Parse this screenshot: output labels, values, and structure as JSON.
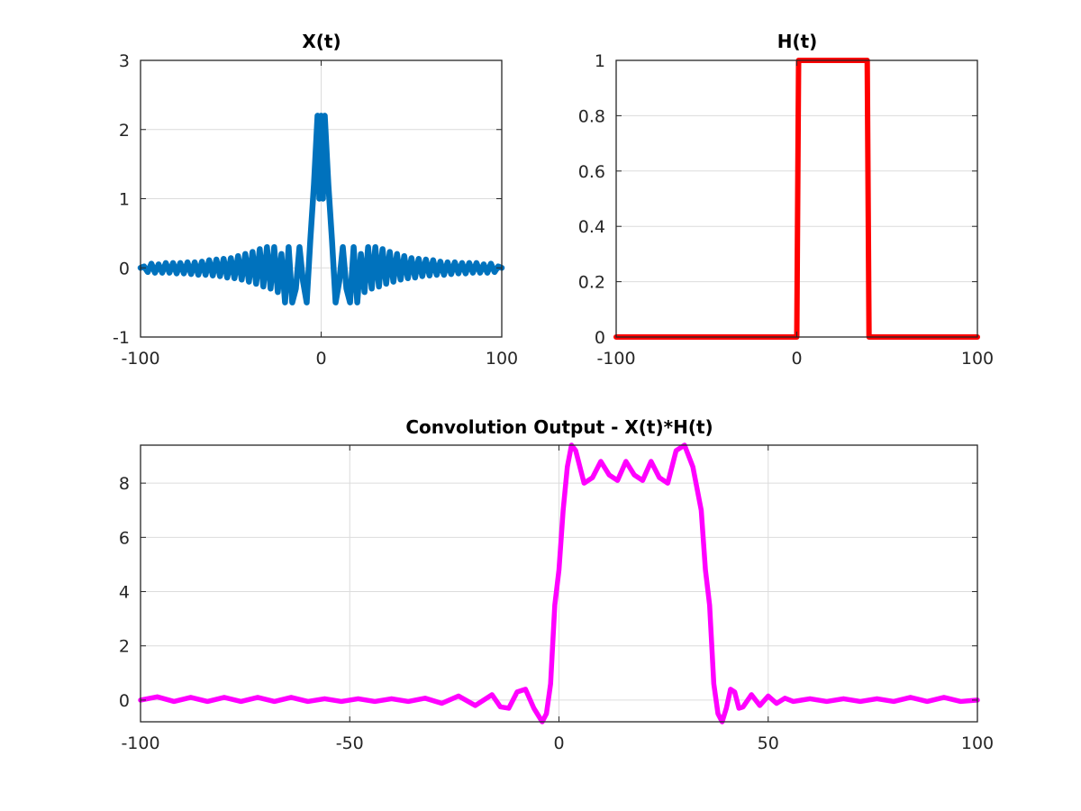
{
  "chart_data": [
    {
      "type": "line",
      "title": "X(t)",
      "xlabel": "",
      "ylabel": "",
      "xlim": [
        -100,
        100
      ],
      "ylim": [
        -1,
        3
      ],
      "xticks": [
        -100,
        0,
        100
      ],
      "yticks": [
        -1,
        0,
        1,
        2,
        3
      ],
      "xtick_labels": [
        "-100",
        "0",
        "100"
      ],
      "ytick_labels": [
        "-1",
        "0",
        "1",
        "2",
        "3"
      ],
      "grid": true,
      "color": "#0072BD",
      "series": [
        {
          "x": [
            -100,
            -98,
            -96,
            -94,
            -92,
            -90,
            -88,
            -86,
            -84,
            -82,
            -80,
            -78,
            -76,
            -74,
            -72,
            -70,
            -68,
            -66,
            -64,
            -62,
            -60,
            -58,
            -56,
            -54,
            -52,
            -50,
            -48,
            -46,
            -44,
            -42,
            -40,
            -38,
            -36,
            -34,
            -32,
            -30,
            -28,
            -26,
            -24,
            -22,
            -20,
            -18,
            -16,
            -14,
            -12,
            -10,
            -8,
            -6,
            -4,
            -2,
            -1,
            0,
            1,
            2,
            4,
            6,
            8,
            10,
            12,
            14,
            16,
            18,
            20,
            22,
            24,
            26,
            28,
            30,
            32,
            34,
            36,
            38,
            40,
            42,
            44,
            46,
            48,
            50,
            52,
            54,
            56,
            58,
            60,
            62,
            64,
            66,
            68,
            70,
            72,
            74,
            76,
            78,
            80,
            82,
            84,
            86,
            88,
            90,
            92,
            94,
            96,
            98,
            100
          ],
          "y": [
            0,
            0.02,
            -0.06,
            0.06,
            -0.07,
            0.05,
            -0.07,
            0.07,
            -0.07,
            0.07,
            -0.08,
            0.07,
            -0.08,
            0.08,
            -0.09,
            0.08,
            -0.1,
            0.09,
            -0.1,
            0.11,
            -0.11,
            0.12,
            -0.12,
            0.13,
            -0.14,
            0.14,
            -0.15,
            0.17,
            -0.17,
            0.2,
            -0.2,
            0.23,
            -0.23,
            0.27,
            -0.27,
            0.3,
            -0.3,
            0.3,
            -0.35,
            0.2,
            -0.5,
            0.3,
            -0.5,
            -0.3,
            0.3,
            -0.2,
            -0.5,
            0.4,
            1.2,
            2.2,
            1.0,
            2.2,
            1.0,
            2.2,
            1.2,
            0.4,
            -0.5,
            -0.2,
            0.3,
            -0.3,
            -0.5,
            0.3,
            -0.5,
            0.2,
            -0.35,
            0.3,
            -0.3,
            0.3,
            -0.27,
            0.27,
            -0.23,
            0.23,
            -0.2,
            0.2,
            -0.17,
            0.17,
            -0.15,
            0.14,
            -0.14,
            0.13,
            -0.12,
            0.12,
            -0.11,
            0.11,
            -0.1,
            0.09,
            -0.1,
            0.08,
            -0.09,
            0.08,
            -0.08,
            0.07,
            -0.08,
            0.07,
            -0.07,
            0.07,
            -0.07,
            0.05,
            -0.07,
            0.06,
            -0.06,
            0.02,
            0
          ]
        }
      ]
    },
    {
      "type": "line",
      "title": "H(t)",
      "xlabel": "",
      "ylabel": "",
      "xlim": [
        -100,
        100
      ],
      "ylim": [
        0,
        1
      ],
      "xticks": [
        -100,
        0,
        100
      ],
      "yticks": [
        0,
        0.2,
        0.4,
        0.6,
        0.8,
        1
      ],
      "xtick_labels": [
        "-100",
        "0",
        "100"
      ],
      "ytick_labels": [
        "0",
        "0.2",
        "0.4",
        "0.6",
        "0.8",
        "1"
      ],
      "grid": true,
      "color": "#FF0000",
      "series": [
        {
          "x": [
            -100,
            0,
            1,
            39,
            40,
            100
          ],
          "y": [
            0,
            0,
            1,
            1,
            0,
            0
          ]
        }
      ]
    },
    {
      "type": "line",
      "title": "Convolution Output -  X(t)*H(t)",
      "xlabel": "",
      "ylabel": "",
      "xlim": [
        -100,
        100
      ],
      "ylim": [
        -0.8,
        9.4
      ],
      "xticks": [
        -100,
        -50,
        0,
        50,
        100
      ],
      "yticks": [
        0,
        2,
        4,
        6,
        8
      ],
      "xtick_labels": [
        "-100",
        "-50",
        "0",
        "50",
        "100"
      ],
      "ytick_labels": [
        "0",
        "2",
        "4",
        "6",
        "8"
      ],
      "grid": true,
      "color": "#FF00FF",
      "series": [
        {
          "x": [
            -100,
            -96,
            -92,
            -88,
            -84,
            -80,
            -76,
            -72,
            -68,
            -64,
            -60,
            -56,
            -52,
            -48,
            -44,
            -40,
            -36,
            -32,
            -28,
            -24,
            -20,
            -16,
            -14,
            -12,
            -10,
            -8,
            -6,
            -4,
            -3,
            -2,
            -1,
            0,
            1,
            2,
            3,
            4,
            6,
            8,
            10,
            12,
            14,
            16,
            18,
            20,
            22,
            24,
            26,
            28,
            30,
            32,
            34,
            35,
            36,
            37,
            38,
            39,
            40,
            41,
            42,
            43,
            44,
            46,
            48,
            50,
            52,
            54,
            56,
            60,
            64,
            68,
            72,
            76,
            80,
            84,
            88,
            92,
            96,
            100
          ],
          "y": [
            0,
            0.12,
            -0.05,
            0.1,
            -0.05,
            0.1,
            -0.05,
            0.1,
            -0.05,
            0.1,
            -0.05,
            0.05,
            -0.05,
            0.05,
            -0.05,
            0.05,
            -0.05,
            0.07,
            -0.12,
            0.15,
            -0.2,
            0.2,
            -0.25,
            -0.3,
            0.3,
            0.4,
            -0.3,
            -0.8,
            -0.5,
            0.6,
            3.5,
            4.8,
            7.0,
            8.6,
            9.4,
            9.2,
            8.0,
            8.2,
            8.8,
            8.3,
            8.1,
            8.8,
            8.3,
            8.1,
            8.8,
            8.2,
            8.0,
            9.2,
            9.4,
            8.6,
            7.0,
            4.8,
            3.5,
            0.6,
            -0.5,
            -0.8,
            -0.3,
            0.4,
            0.3,
            -0.3,
            -0.25,
            0.2,
            -0.2,
            0.15,
            -0.12,
            0.07,
            -0.05,
            0.05,
            -0.05,
            0.05,
            -0.05,
            0.05,
            -0.05,
            0.1,
            -0.05,
            0.1,
            -0.05,
            0
          ]
        }
      ]
    }
  ]
}
